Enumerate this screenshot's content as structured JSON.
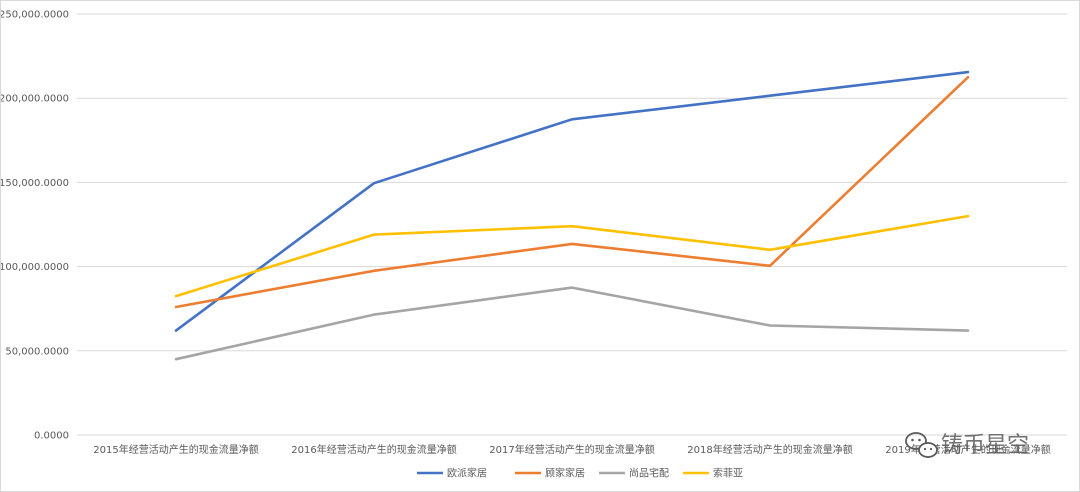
{
  "chart_data": {
    "type": "line",
    "title": "",
    "xlabel": "",
    "ylabel": "",
    "categories": [
      "2015年经营活动产生的现金流量净额",
      "2016年经营活动产生的现金流量净额",
      "2017年经营活动产生的现金流量净额",
      "2018年经营活动产生的现金流量净额",
      "2019年经营活动产生的现金流量净额"
    ],
    "y_ticks": [
      "0.0000",
      "50,000.0000",
      "100,000.0000",
      "150,000.0000",
      "200,000.0000",
      "250,000.0000"
    ],
    "ylim": [
      0,
      250000
    ],
    "grid": true,
    "legend_position": "bottom",
    "series": [
      {
        "name": "欧派家居",
        "color": "#4472c4",
        "values": [
          62000,
          149500,
          187500,
          201500,
          215500
        ]
      },
      {
        "name": "顾家家居",
        "color": "#ed7d31",
        "values": [
          76000,
          97500,
          113500,
          100500,
          212500
        ]
      },
      {
        "name": "尚品宅配",
        "color": "#a5a5a5",
        "values": [
          45000,
          71500,
          87500,
          65000,
          62000
        ]
      },
      {
        "name": "索菲亚",
        "color": "#ffc000",
        "values": [
          82500,
          119000,
          124000,
          110000,
          130000
        ]
      }
    ]
  },
  "watermark": {
    "text": "铸币星空",
    "icon": "wechat-icon"
  }
}
